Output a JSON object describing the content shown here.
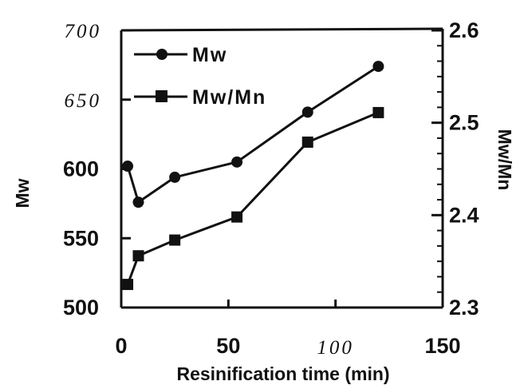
{
  "chart_data": {
    "type": "line",
    "xlabel": "Resinification time (min)",
    "ylabel_left": "Mw",
    "ylabel_right": "Mw/Mn",
    "xlim": [
      0,
      150
    ],
    "ylim_left": [
      500,
      700
    ],
    "ylim_right": [
      2.3,
      2.6
    ],
    "x_ticks": [
      "0",
      "50",
      "100",
      "150"
    ],
    "y_left_ticks": [
      "500",
      "550",
      "600",
      "650",
      "700"
    ],
    "y_right_ticks": [
      "2.3",
      "2.4",
      "2.5",
      "2.6"
    ],
    "legend_position": "top-left",
    "grid": false,
    "series": [
      {
        "name": "Mw",
        "axis": "left",
        "marker": "circle",
        "x": [
          3,
          8,
          25,
          54,
          87,
          120
        ],
        "y": [
          602,
          576,
          594,
          605,
          641,
          674
        ]
      },
      {
        "name": "Mw/Mn",
        "axis": "right",
        "marker": "square",
        "x": [
          3,
          8,
          25,
          54,
          87,
          120
        ],
        "y": [
          2.325,
          2.356,
          2.373,
          2.398,
          2.479,
          2.511
        ]
      }
    ]
  }
}
